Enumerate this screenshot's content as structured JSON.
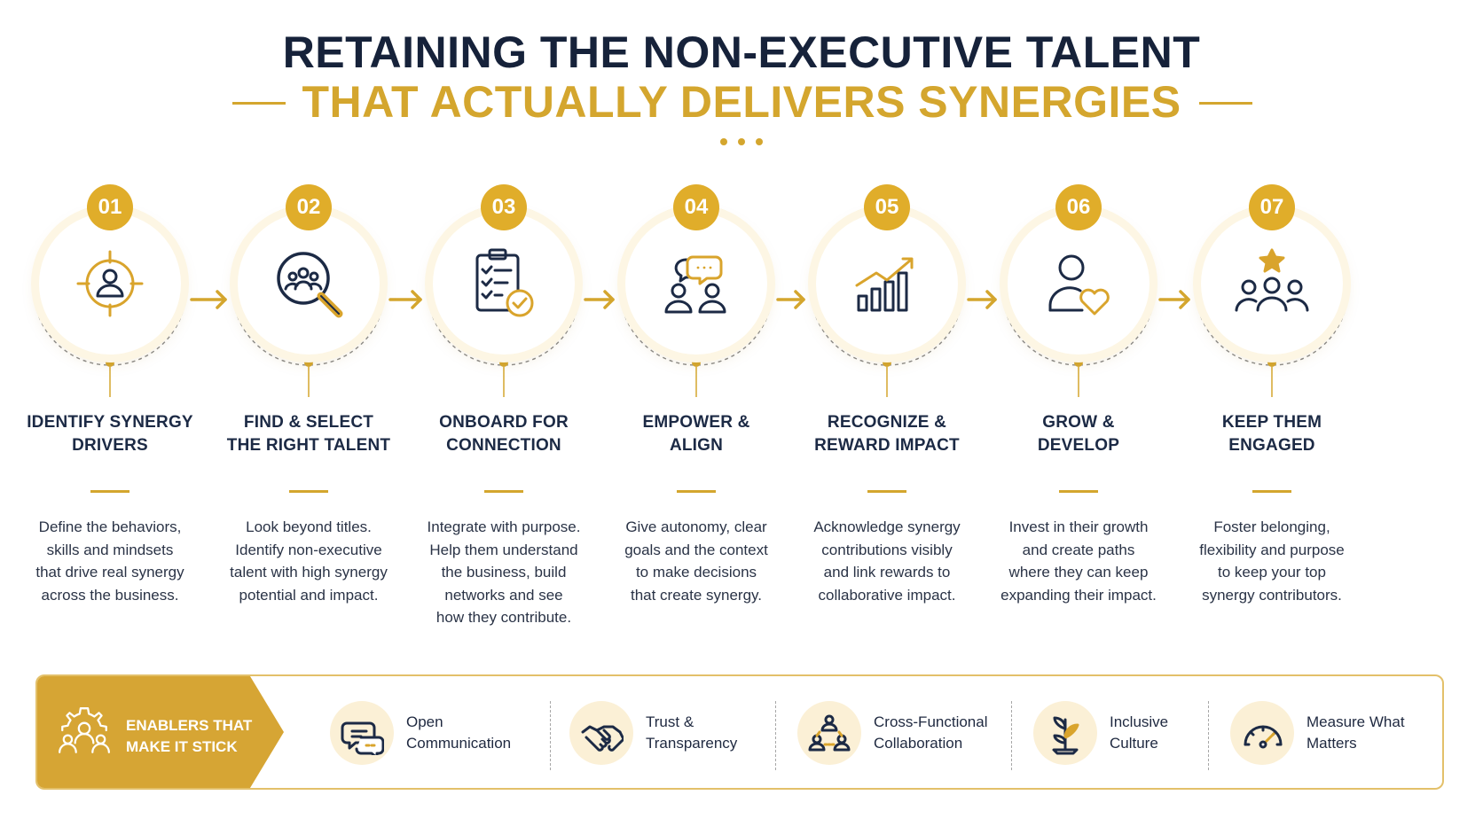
{
  "header": {
    "title_line1": "RETAINING THE NON-EXECUTIVE TALENT",
    "title_line2": "THAT ACTUALLY DELIVERS SYNERGIES"
  },
  "colors": {
    "navy": "#16223a",
    "gold": "#d4a62e",
    "badge": "#e0ad2a",
    "cream": "#fbf0d6"
  },
  "steps": [
    {
      "number": "01",
      "icon": "target-person-icon",
      "title": [
        "IDENTIFY SYNERGY",
        "DRIVERS"
      ],
      "desc": [
        "Define the behaviors,",
        "skills and mindsets",
        "that drive real synergy",
        "across the business."
      ]
    },
    {
      "number": "02",
      "icon": "magnifier-people-icon",
      "title": [
        "FIND & SELECT",
        "THE RIGHT TALENT"
      ],
      "desc": [
        "Look beyond titles.",
        "Identify non-executive",
        "talent with high synergy",
        "potential and impact."
      ]
    },
    {
      "number": "03",
      "icon": "clipboard-check-icon",
      "title": [
        "ONBOARD FOR",
        "CONNECTION"
      ],
      "desc": [
        "Integrate with purpose.",
        "Help them understand",
        "the business, build",
        "networks and see",
        "how they contribute."
      ]
    },
    {
      "number": "04",
      "icon": "people-chat-icon",
      "title": [
        "EMPOWER &",
        "ALIGN"
      ],
      "desc": [
        "Give autonomy, clear",
        "goals and the context",
        "to make decisions",
        "that create synergy."
      ]
    },
    {
      "number": "05",
      "icon": "growth-chart-icon",
      "title": [
        "RECOGNIZE &",
        "REWARD IMPACT"
      ],
      "desc": [
        "Acknowledge synergy",
        "contributions visibly",
        "and link rewards to",
        "collaborative impact."
      ]
    },
    {
      "number": "06",
      "icon": "person-heart-icon",
      "title": [
        "GROW &",
        "DEVELOP"
      ],
      "desc": [
        "Invest in their growth",
        "and create paths",
        "where they can keep",
        "expanding their impact."
      ]
    },
    {
      "number": "07",
      "icon": "team-star-icon",
      "title": [
        "KEEP THEM",
        "ENGAGED"
      ],
      "desc": [
        "Foster belonging,",
        "flexibility and purpose",
        "to keep your top",
        "synergy contributors."
      ]
    }
  ],
  "enablers": {
    "heading": [
      "ENABLERS THAT",
      "MAKE IT STICK"
    ],
    "heading_icon": "gear-people-icon",
    "items": [
      {
        "icon": "chat-bubbles-icon",
        "label": [
          "Open",
          "Communication"
        ]
      },
      {
        "icon": "handshake-icon",
        "label": [
          "Trust &",
          "Transparency"
        ]
      },
      {
        "icon": "network-people-icon",
        "label": [
          "Cross-Functional",
          "Collaboration"
        ]
      },
      {
        "icon": "plant-growth-icon",
        "label": [
          "Inclusive",
          "Culture"
        ]
      },
      {
        "icon": "gauge-icon",
        "label": [
          "Measure What",
          "Matters"
        ]
      }
    ]
  }
}
